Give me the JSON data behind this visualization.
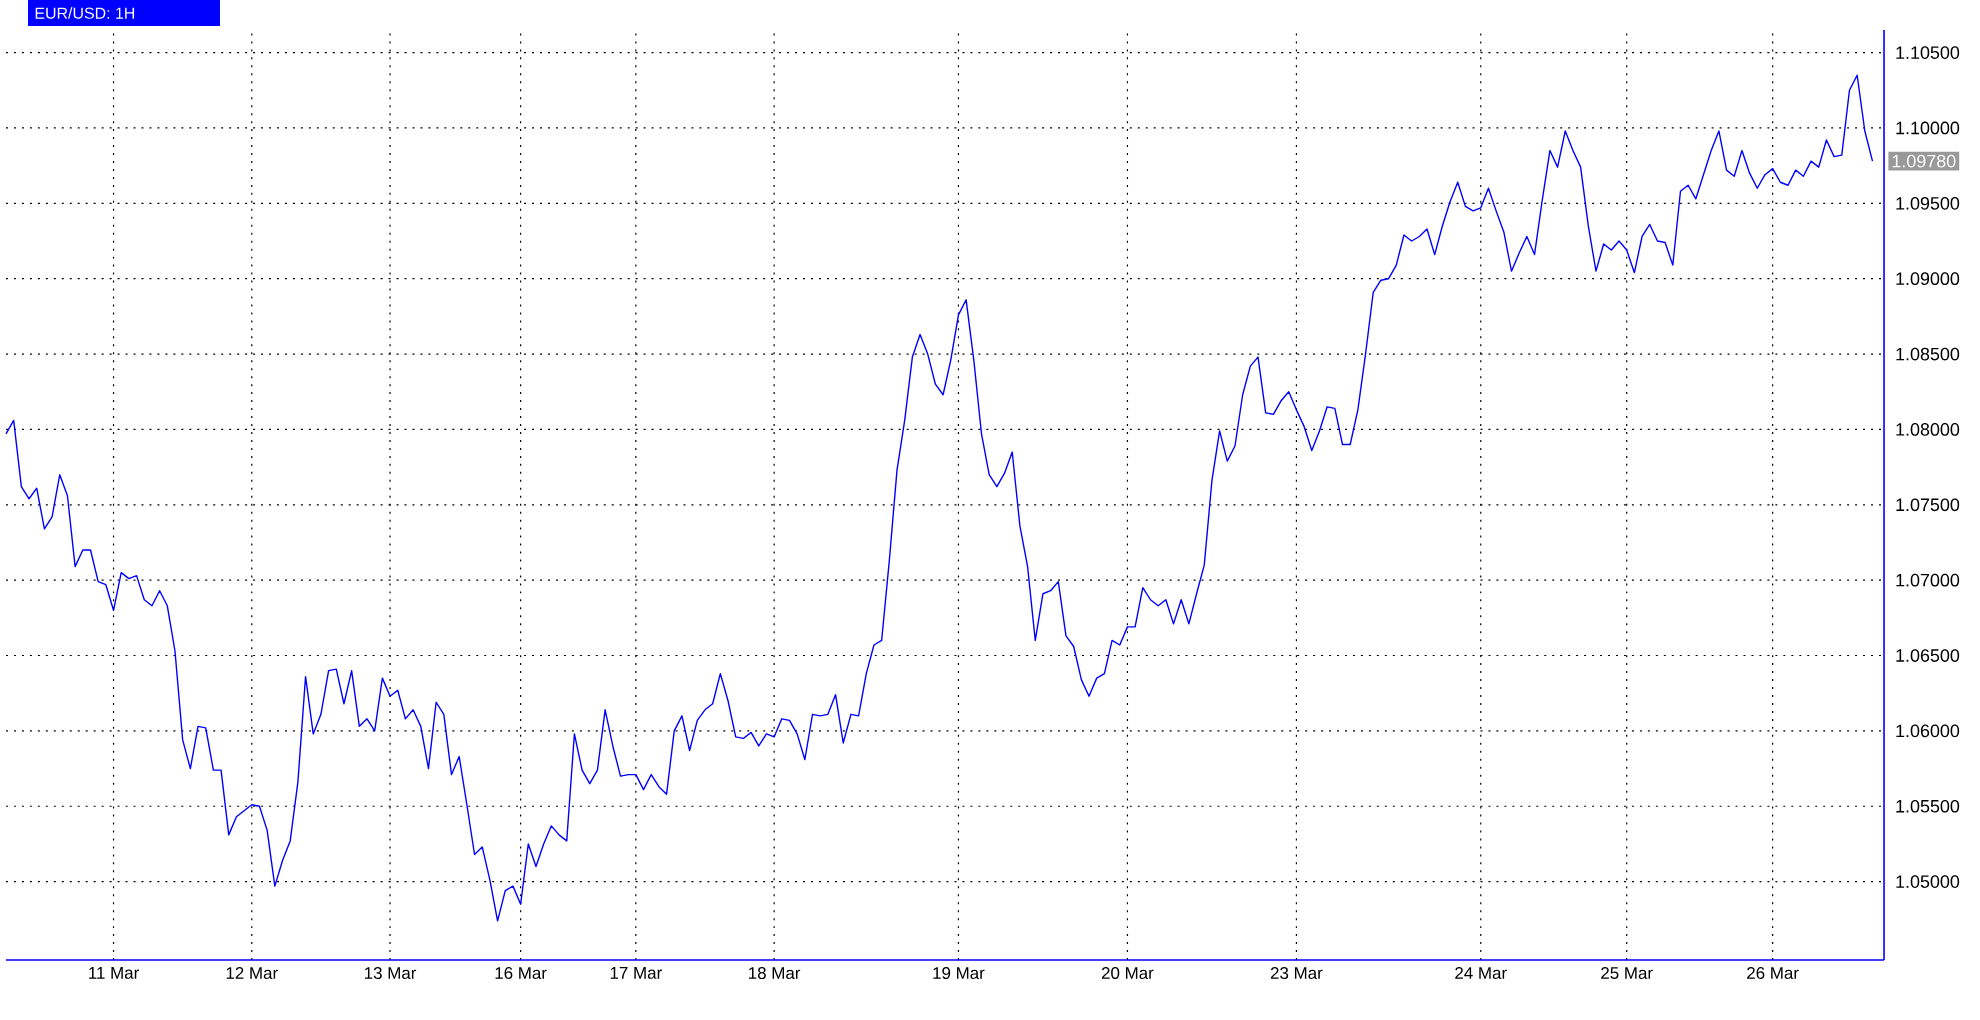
{
  "chart_data": {
    "type": "line",
    "title": "EUR/USD: 1H",
    "categories": [
      null,
      null,
      null,
      null,
      null,
      null,
      null,
      null,
      null,
      null,
      null,
      null,
      null,
      null,
      "11 Mar",
      null,
      null,
      null,
      null,
      null,
      null,
      null,
      null,
      null,
      null,
      null,
      null,
      null,
      null,
      null,
      null,
      null,
      "12 Mar",
      null,
      null,
      null,
      null,
      null,
      null,
      null,
      null,
      null,
      null,
      null,
      null,
      null,
      null,
      null,
      null,
      null,
      "13 Mar",
      null,
      null,
      null,
      null,
      null,
      null,
      null,
      null,
      null,
      null,
      null,
      null,
      null,
      null,
      null,
      null,
      "16 Mar",
      null,
      null,
      null,
      null,
      null,
      null,
      null,
      null,
      null,
      null,
      null,
      null,
      null,
      null,
      "17 Mar",
      null,
      null,
      null,
      null,
      null,
      null,
      null,
      null,
      null,
      null,
      null,
      null,
      null,
      null,
      null,
      null,
      null,
      "18 Mar",
      null,
      null,
      null,
      null,
      null,
      null,
      null,
      null,
      null,
      null,
      null,
      null,
      null,
      null,
      null,
      null,
      null,
      null,
      null,
      null,
      null,
      null,
      null,
      "19 Mar",
      null,
      null,
      null,
      null,
      null,
      null,
      null,
      null,
      null,
      null,
      null,
      null,
      null,
      null,
      null,
      null,
      null,
      null,
      null,
      null,
      null,
      "20 Mar",
      null,
      null,
      null,
      null,
      null,
      null,
      null,
      null,
      null,
      null,
      null,
      null,
      null,
      null,
      null,
      null,
      null,
      null,
      null,
      null,
      null,
      "23 Mar",
      null,
      null,
      null,
      null,
      null,
      null,
      null,
      null,
      null,
      null,
      null,
      null,
      null,
      null,
      null,
      null,
      null,
      null,
      null,
      null,
      null,
      null,
      null,
      "24 Mar",
      null,
      null,
      null,
      null,
      null,
      null,
      null,
      null,
      null,
      null,
      null,
      null,
      null,
      null,
      null,
      null,
      null,
      null,
      "25 Mar",
      null,
      null,
      null,
      null,
      null,
      null,
      null,
      null,
      null,
      null,
      null,
      null,
      null,
      null,
      null,
      null,
      null,
      null,
      "26 Mar",
      null,
      null,
      null,
      null,
      null,
      null,
      null,
      null,
      null,
      null,
      null,
      null,
      null
    ],
    "values": [
      1.0797,
      1.0806,
      1.0762,
      1.0754,
      1.0761,
      1.0734,
      1.0742,
      1.077,
      1.0756,
      1.0709,
      1.072,
      1.072,
      1.0699,
      1.0697,
      1.068,
      1.0705,
      1.0701,
      1.0703,
      1.0687,
      1.0683,
      1.0693,
      1.0683,
      1.0653,
      1.0594,
      1.0575,
      1.0603,
      1.0602,
      1.0574,
      1.0574,
      1.0531,
      1.0543,
      1.0547,
      1.0551,
      1.055,
      1.0534,
      1.0497,
      1.0514,
      1.0527,
      1.0566,
      1.0636,
      1.0598,
      1.0611,
      1.064,
      1.0641,
      1.0618,
      1.064,
      1.0603,
      1.0608,
      1.06,
      1.0635,
      1.0623,
      1.0627,
      1.0608,
      1.0614,
      1.0603,
      1.0575,
      1.0619,
      1.0611,
      1.0571,
      1.0583,
      1.0551,
      1.0518,
      1.0523,
      1.0501,
      1.0474,
      1.0494,
      1.0497,
      1.0485,
      1.0525,
      1.051,
      1.0525,
      1.0537,
      1.0531,
      1.0527,
      1.0598,
      1.0574,
      1.0565,
      1.0574,
      1.0614,
      1.059,
      1.057,
      1.0571,
      1.0571,
      1.0561,
      1.0571,
      1.0563,
      1.0558,
      1.06,
      1.061,
      1.0587,
      1.0607,
      1.0614,
      1.0618,
      1.0638,
      1.062,
      1.0596,
      1.0595,
      1.0599,
      1.059,
      1.0598,
      1.0596,
      1.0608,
      1.0607,
      1.0598,
      1.0581,
      1.0611,
      1.061,
      1.0611,
      1.0624,
      1.0592,
      1.0611,
      1.061,
      1.0638,
      1.0657,
      1.066,
      1.0713,
      1.0773,
      1.0806,
      1.0848,
      1.0863,
      1.085,
      1.083,
      1.0823,
      1.0846,
      1.0876,
      1.0886,
      1.0846,
      1.0797,
      1.077,
      1.0762,
      1.0771,
      1.0785,
      1.0736,
      1.0709,
      1.066,
      1.0691,
      1.0693,
      1.0699,
      1.0663,
      1.0656,
      1.0634,
      1.0623,
      1.0635,
      1.0638,
      1.066,
      1.0657,
      1.0669,
      1.0669,
      1.0695,
      1.0687,
      1.0683,
      1.0687,
      1.0671,
      1.0687,
      1.0671,
      1.0691,
      1.071,
      1.0766,
      1.0799,
      1.0779,
      1.0789,
      1.0823,
      1.0842,
      1.0848,
      1.0811,
      1.081,
      1.0819,
      1.0825,
      1.0813,
      1.0802,
      1.0786,
      1.0799,
      1.0815,
      1.0814,
      1.079,
      1.079,
      1.0813,
      1.085,
      1.0891,
      1.0899,
      1.09,
      1.0909,
      1.0929,
      1.0925,
      1.0928,
      1.0933,
      1.0916,
      1.0935,
      1.0951,
      1.0964,
      1.0948,
      1.0945,
      1.0947,
      1.096,
      1.0945,
      1.0931,
      1.0905,
      1.0917,
      1.0928,
      1.0916,
      1.0952,
      1.0985,
      1.0974,
      1.0998,
      1.0985,
      1.0974,
      1.0935,
      1.0905,
      1.0923,
      1.0919,
      1.0925,
      1.0919,
      1.0904,
      1.0928,
      1.0936,
      1.0925,
      1.0924,
      1.0909,
      1.0958,
      1.0962,
      1.0953,
      1.0969,
      1.0985,
      1.0998,
      1.0972,
      1.0968,
      1.0985,
      1.097,
      1.096,
      1.0969,
      1.0973,
      1.0964,
      1.0962,
      1.0972,
      1.0968,
      1.0978,
      1.0974,
      1.0992,
      1.0981,
      1.0982,
      1.1025,
      1.1035,
      1.0998,
      1.0978
    ],
    "color": "#0000ff",
    "ylim": [
      1.0448,
      1.1065
    ],
    "yticks": [
      {
        "value": 1.05,
        "label": "1.05000"
      },
      {
        "value": 1.055,
        "label": "1.05500"
      },
      {
        "value": 1.06,
        "label": "1.06000"
      },
      {
        "value": 1.065,
        "label": "1.06500"
      },
      {
        "value": 1.07,
        "label": "1.07000"
      },
      {
        "value": 1.075,
        "label": "1.07500"
      },
      {
        "value": 1.08,
        "label": "1.08000"
      },
      {
        "value": 1.085,
        "label": "1.08500"
      },
      {
        "value": 1.09,
        "label": "1.09000"
      },
      {
        "value": 1.095,
        "label": "1.09500"
      },
      {
        "value": 1.1,
        "label": "1.10000"
      },
      {
        "value": 1.105,
        "label": "1.10500"
      }
    ],
    "grid": true,
    "line_style": "solid",
    "annotations": [
      "1.09780"
    ]
  }
}
